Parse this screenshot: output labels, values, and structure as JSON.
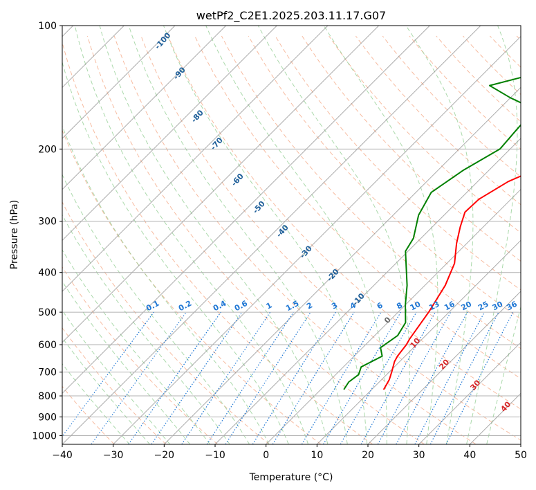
{
  "chart_data": {
    "type": "line",
    "title": "wetPf2_C2E1.2025.203.11.17.G07",
    "xlabel": "Temperature (°C)",
    "ylabel": "Pressure (hPa)",
    "xlim": [
      -40,
      50
    ],
    "ylim": [
      1050,
      100
    ],
    "y_scale": "log",
    "grid": true,
    "x_ticks": [
      -40,
      -30,
      -20,
      -10,
      0,
      10,
      20,
      30,
      40,
      50
    ],
    "y_ticks": [
      100,
      200,
      300,
      400,
      500,
      600,
      700,
      800,
      900,
      1000
    ],
    "skew": 45,
    "series": [
      {
        "color": "#ff0000",
        "x": [
          12.3,
          11.5,
          10.5,
          9.0,
          8.5,
          8.0,
          7.5,
          6.0,
          4.0,
          1.5,
          -2.0,
          -4.5,
          -6.5,
          -6.3,
          -4.0,
          1.0,
          8.0,
          14.0,
          17.5,
          19.0,
          20.0,
          23.0
        ],
        "y": [
          770,
          730,
          700,
          660,
          640,
          600,
          580,
          500,
          430,
          380,
          340,
          310,
          285,
          265,
          240,
          215,
          190,
          165,
          145,
          130,
          115,
          100
        ]
      },
      {
        "color": "#008000",
        "x": [
          4.5,
          4.0,
          4.5,
          3.5,
          5.5,
          3.5,
          4.5,
          3.5,
          0.0,
          -3.5,
          -10.5,
          -11.5,
          -15.0,
          -17.0,
          -15.0,
          -12.0,
          -12.5,
          -13.0,
          -20.0,
          -26.5,
          -19.0,
          -5.0,
          1.5,
          1.8
        ],
        "y": [
          770,
          740,
          710,
          680,
          640,
          610,
          570,
          530,
          480,
          430,
          355,
          330,
          290,
          255,
          225,
          200,
          180,
          160,
          150,
          140,
          130,
          120,
          105,
          100
        ]
      }
    ],
    "annotations": {
      "dry_adiabats": [
        "-100",
        "-90",
        "-80",
        "-70",
        "-60",
        "-50",
        "-40",
        "-30",
        "-20",
        "-10"
      ],
      "mixing_ratios": [
        "0.1",
        "0.2",
        "0.4",
        "0.6",
        "1",
        "1.5",
        "2",
        "3",
        "4",
        "6",
        "8",
        "10",
        "13",
        "16",
        "20",
        "25",
        "30",
        "36"
      ],
      "moist_adiabats": [
        "0",
        "10",
        "20",
        "30",
        "40"
      ]
    },
    "colors": {
      "temperature": "#ff0000",
      "dewpoint": "#008000",
      "dry_adiabat": "#f4a582",
      "moist_adiabat": "#8fcc8f",
      "mixing_ratio": "#1f77d4",
      "dry_adiabat_label": "#1f5f99",
      "moist_adiabat_label": "#d62728",
      "isotherm": "#888888"
    }
  }
}
